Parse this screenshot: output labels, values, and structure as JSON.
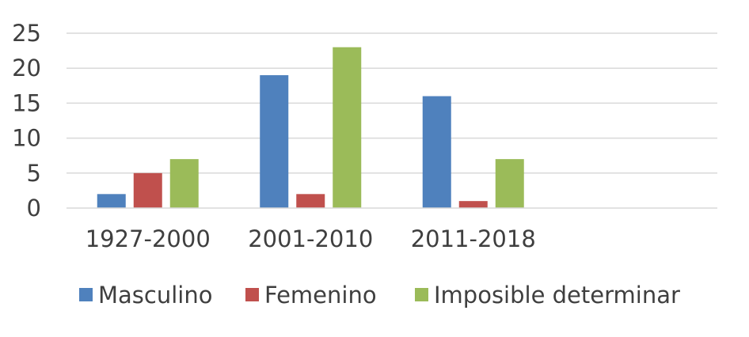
{
  "chart_data": {
    "type": "bar",
    "categories": [
      "1927-2000",
      "2001-2010",
      "2011-2018",
      ""
    ],
    "series": [
      {
        "name": "Masculino",
        "values": [
          2,
          19,
          16,
          0
        ],
        "color": "#4f81bd"
      },
      {
        "name": "Femenino",
        "values": [
          5,
          2,
          1,
          0
        ],
        "color": "#c0504d"
      },
      {
        "name": "Imposible determinar",
        "values": [
          7,
          23,
          7,
          0
        ],
        "color": "#9bbb59"
      }
    ],
    "ylim": [
      0,
      25
    ],
    "yticks": [
      0,
      5,
      10,
      15,
      20,
      25
    ],
    "grid": true,
    "legend_position": "bottom"
  }
}
